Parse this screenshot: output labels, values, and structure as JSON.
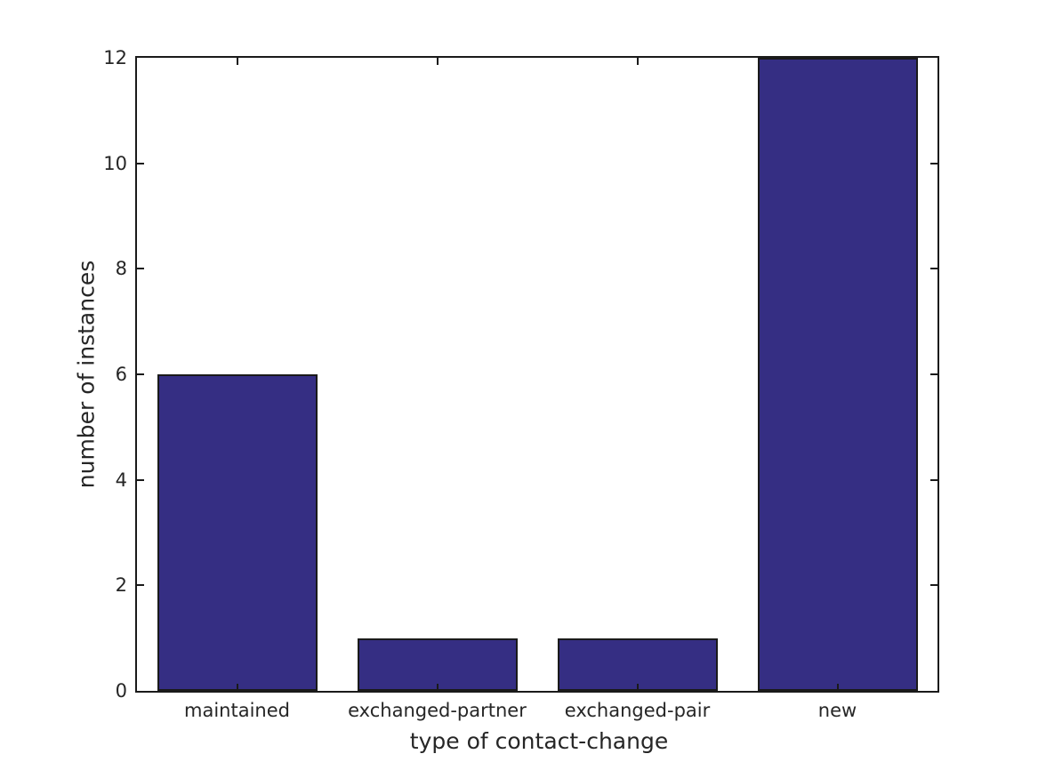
{
  "chart_data": {
    "type": "bar",
    "title": "",
    "xlabel": "type of contact-change",
    "ylabel": "number of instances",
    "categories": [
      "maintained",
      "exchanged-partner",
      "exchanged-pair",
      "new"
    ],
    "values": [
      6,
      1,
      1,
      12
    ],
    "ylim": [
      0,
      12
    ],
    "yticks": [
      0,
      2,
      4,
      6,
      8,
      10,
      12
    ],
    "bar_width_fraction": 0.8,
    "grid": false,
    "legend": "none",
    "tick_direction": "in",
    "box": "on",
    "bar_color": "#352e83",
    "bar_edge_color": "#1a1a1a",
    "axis_color": "#1a1a1a",
    "text_color": "#262626",
    "background_color": "#ffffff"
  }
}
